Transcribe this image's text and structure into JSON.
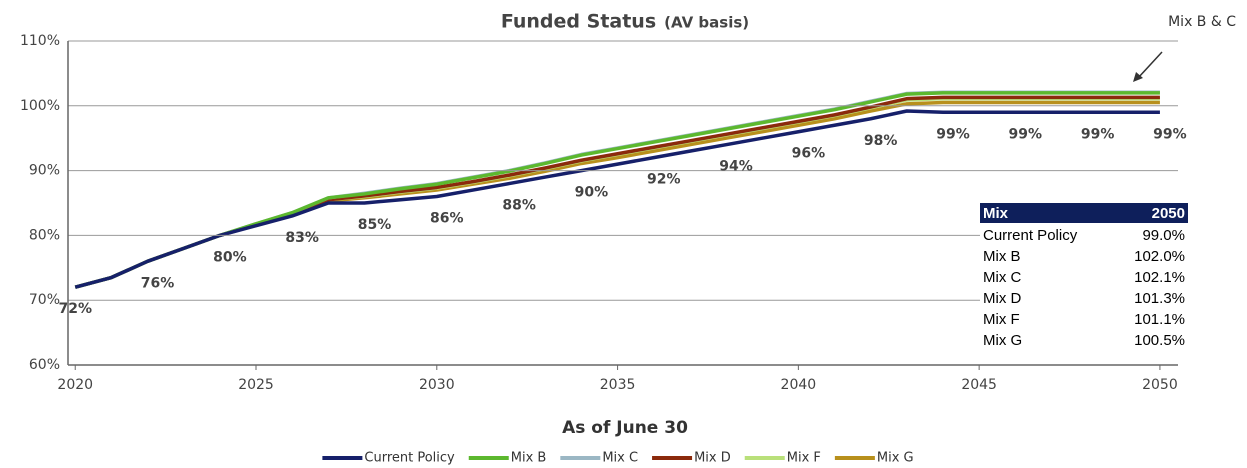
{
  "chart_data": {
    "type": "line",
    "title": "Funded Status",
    "subtitle": "(AV basis)",
    "xlabel": "As of June 30",
    "annotation": "Mix B & C",
    "x": [
      2020,
      2021,
      2022,
      2023,
      2024,
      2025,
      2026,
      2027,
      2028,
      2029,
      2030,
      2031,
      2032,
      2033,
      2034,
      2035,
      2036,
      2037,
      2038,
      2039,
      2040,
      2041,
      2042,
      2043,
      2044,
      2045,
      2046,
      2047,
      2048,
      2049,
      2050
    ],
    "xlim": [
      2019.8,
      2050.5
    ],
    "xticks": [
      2020,
      2025,
      2030,
      2035,
      2040,
      2045,
      2050
    ],
    "ylim": [
      60,
      110
    ],
    "yticks": [
      {
        "value": 60,
        "label": "60%"
      },
      {
        "value": 70,
        "label": "70%"
      },
      {
        "value": 80,
        "label": "80%"
      },
      {
        "value": 90,
        "label": "90%"
      },
      {
        "value": 100,
        "label": "100%"
      },
      {
        "value": 110,
        "label": "110%"
      }
    ],
    "grid": true,
    "series": [
      {
        "name": "Current Policy",
        "color": "#16206a",
        "values": [
          72,
          73.5,
          76,
          78,
          80,
          81.5,
          83,
          85,
          85,
          85.5,
          86,
          87,
          88,
          89,
          90,
          91,
          92,
          93,
          94,
          95,
          96,
          97,
          98,
          99.2,
          99,
          99,
          99,
          99,
          99,
          99,
          99
        ],
        "value_labels": [
          "72%",
          null,
          "76%",
          null,
          "80%",
          null,
          "83%",
          null,
          "85%",
          null,
          "86%",
          null,
          "88%",
          null,
          "90%",
          null,
          "92%",
          null,
          "94%",
          null,
          "96%",
          null,
          "98%",
          null,
          "99%",
          null,
          "99%",
          null,
          "99%",
          null,
          "99%"
        ]
      },
      {
        "name": "Mix B",
        "color": "#5cb82e",
        "values": [
          72,
          73.5,
          76,
          78,
          80,
          81.8,
          83.5,
          85.8,
          86.4,
          87.2,
          87.9,
          88.9,
          89.9,
          91.1,
          92.4,
          93.4,
          94.4,
          95.4,
          96.4,
          97.4,
          98.4,
          99.4,
          100.6,
          101.8,
          102,
          102,
          102,
          102,
          102,
          102,
          102
        ]
      },
      {
        "name": "Mix C",
        "color": "#9bb7c4",
        "values": [
          72,
          73.5,
          76,
          78,
          80,
          81.8,
          83.5,
          85.8,
          86.5,
          87.3,
          88,
          89,
          90,
          91.2,
          92.5,
          93.5,
          94.5,
          95.5,
          96.5,
          97.5,
          98.5,
          99.5,
          100.7,
          101.9,
          102.1,
          102.1,
          102.1,
          102.1,
          102.1,
          102.1,
          102.1
        ]
      },
      {
        "name": "Mix D",
        "color": "#8b2a0c",
        "values": [
          72,
          73.5,
          76,
          78,
          80,
          81.7,
          83.3,
          85.5,
          86.1,
          86.8,
          87.4,
          88.3,
          89.3,
          90.4,
          91.6,
          92.6,
          93.6,
          94.6,
          95.6,
          96.6,
          97.6,
          98.6,
          99.8,
          101.1,
          101.3,
          101.3,
          101.3,
          101.3,
          101.3,
          101.3,
          101.3
        ]
      },
      {
        "name": "Mix F",
        "color": "#b9e07a",
        "values": [
          72,
          73.5,
          76,
          78,
          80,
          81.7,
          83.3,
          85.5,
          86,
          86.7,
          87.3,
          88.2,
          89.2,
          90.3,
          91.5,
          92.5,
          93.5,
          94.5,
          95.5,
          96.5,
          97.5,
          98.5,
          99.7,
          100.9,
          101.1,
          101.1,
          101.1,
          101.1,
          101.1,
          101.1,
          101.1
        ]
      },
      {
        "name": "Mix G",
        "color": "#b8901c",
        "values": [
          72,
          73.5,
          76,
          78,
          80,
          81.6,
          83.2,
          85.3,
          85.8,
          86.4,
          87,
          87.9,
          88.8,
          89.9,
          91.1,
          92,
          93,
          94,
          95,
          96,
          97,
          98,
          99.2,
          100.3,
          100.5,
          100.5,
          100.5,
          100.5,
          100.5,
          100.5,
          100.5
        ]
      }
    ],
    "table": {
      "header": [
        "Mix",
        "2050"
      ],
      "rows": [
        [
          "Current Policy",
          "99.0%"
        ],
        [
          "Mix B",
          "102.0%"
        ],
        [
          "Mix C",
          "102.1%"
        ],
        [
          "Mix D",
          "101.3%"
        ],
        [
          "Mix F",
          "101.1%"
        ],
        [
          "Mix G",
          "100.5%"
        ]
      ]
    }
  }
}
